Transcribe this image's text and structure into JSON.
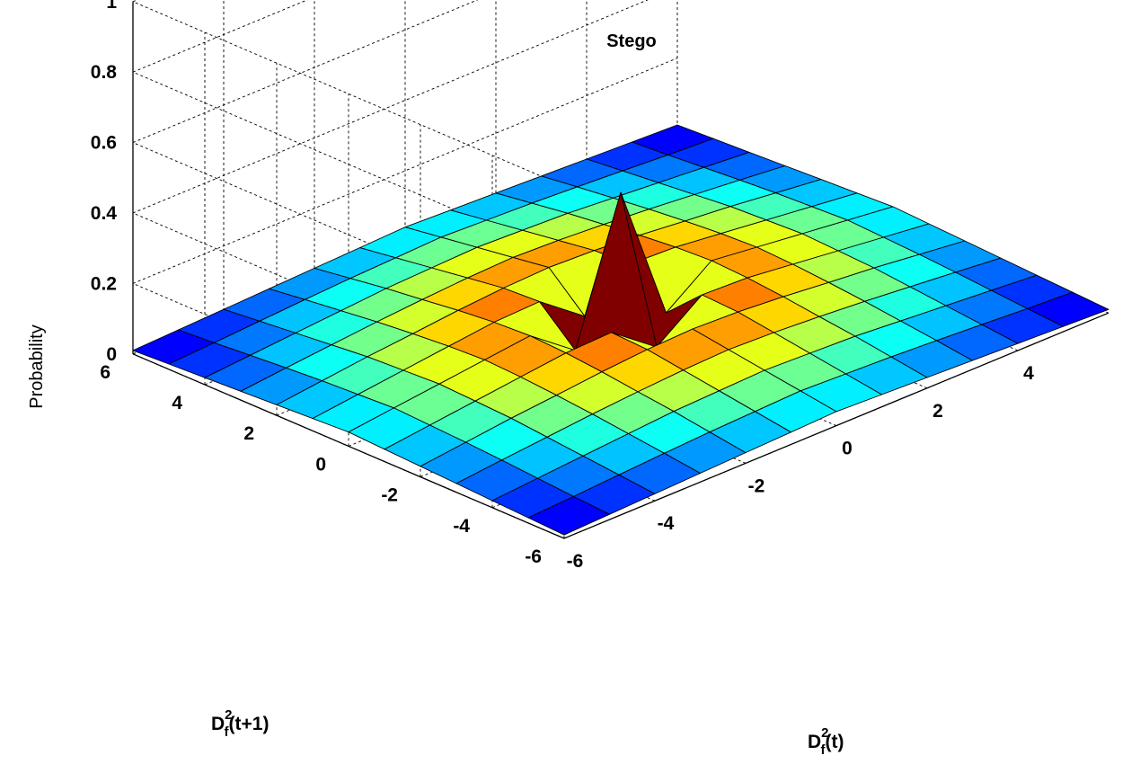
{
  "chart_data": {
    "type": "surface3d",
    "title": "Stego",
    "xlabel_base": "D",
    "xlabel_sup": "2",
    "xlabel_sub": "f",
    "xlabel_rest": "(t)",
    "ylabel_base": "D",
    "ylabel_sup": "2",
    "ylabel_sub": "f",
    "ylabel_rest": "(t+1)",
    "zlabel": "Probability",
    "x": [
      -6,
      -5,
      -4,
      -3,
      -2,
      -1,
      0,
      1,
      2,
      3,
      4,
      5,
      6
    ],
    "y": [
      -6,
      -5,
      -4,
      -3,
      -2,
      -1,
      0,
      1,
      2,
      3,
      4,
      5,
      6
    ],
    "xlim": [
      -6,
      6
    ],
    "ylim": [
      -6,
      6
    ],
    "zlim": [
      0,
      1
    ],
    "x_ticks": [
      "-6",
      "-4",
      "-2",
      "0",
      "2",
      "4"
    ],
    "y_ticks": [
      "-6",
      "-4",
      "-2",
      "0",
      "2",
      "4",
      "6"
    ],
    "z_ticks": [
      "0",
      "0.2",
      "0.4",
      "0.6",
      "0.8",
      "1"
    ],
    "z_tick_values": [
      0,
      0.2,
      0.4,
      0.6,
      0.8,
      1
    ],
    "grid": true,
    "colormap": "jet",
    "z": [
      [
        0.01,
        0.015,
        0.02,
        0.025,
        0.03,
        0.035,
        0.04,
        0.035,
        0.03,
        0.025,
        0.02,
        0.015,
        0.01
      ],
      [
        0.015,
        0.022,
        0.03,
        0.038,
        0.045,
        0.05,
        0.055,
        0.05,
        0.045,
        0.038,
        0.03,
        0.022,
        0.015
      ],
      [
        0.02,
        0.03,
        0.04,
        0.05,
        0.06,
        0.065,
        0.07,
        0.065,
        0.06,
        0.05,
        0.04,
        0.03,
        0.02
      ],
      [
        0.025,
        0.038,
        0.05,
        0.062,
        0.072,
        0.08,
        0.085,
        0.08,
        0.072,
        0.062,
        0.05,
        0.038,
        0.025
      ],
      [
        0.03,
        0.045,
        0.06,
        0.072,
        0.085,
        0.095,
        0.1,
        0.095,
        0.085,
        0.072,
        0.06,
        0.045,
        0.03
      ],
      [
        0.035,
        0.05,
        0.065,
        0.08,
        0.095,
        0.1,
        0.005,
        0.1,
        0.095,
        0.08,
        0.065,
        0.05,
        0.035
      ],
      [
        0.04,
        0.055,
        0.07,
        0.085,
        0.1,
        0.005,
        0.4,
        0.005,
        0.1,
        0.085,
        0.07,
        0.055,
        0.04
      ],
      [
        0.035,
        0.05,
        0.065,
        0.08,
        0.095,
        0.1,
        0.005,
        0.1,
        0.095,
        0.08,
        0.065,
        0.05,
        0.035
      ],
      [
        0.03,
        0.045,
        0.06,
        0.072,
        0.085,
        0.095,
        0.1,
        0.095,
        0.085,
        0.072,
        0.06,
        0.045,
        0.03
      ],
      [
        0.025,
        0.038,
        0.05,
        0.062,
        0.072,
        0.08,
        0.085,
        0.08,
        0.072,
        0.062,
        0.05,
        0.038,
        0.025
      ],
      [
        0.02,
        0.03,
        0.04,
        0.05,
        0.06,
        0.065,
        0.07,
        0.065,
        0.06,
        0.05,
        0.04,
        0.03,
        0.02
      ],
      [
        0.015,
        0.022,
        0.03,
        0.038,
        0.045,
        0.05,
        0.055,
        0.05,
        0.045,
        0.038,
        0.03,
        0.022,
        0.015
      ],
      [
        0.01,
        0.015,
        0.02,
        0.025,
        0.03,
        0.035,
        0.04,
        0.035,
        0.03,
        0.025,
        0.02,
        0.015,
        0.01
      ]
    ]
  }
}
